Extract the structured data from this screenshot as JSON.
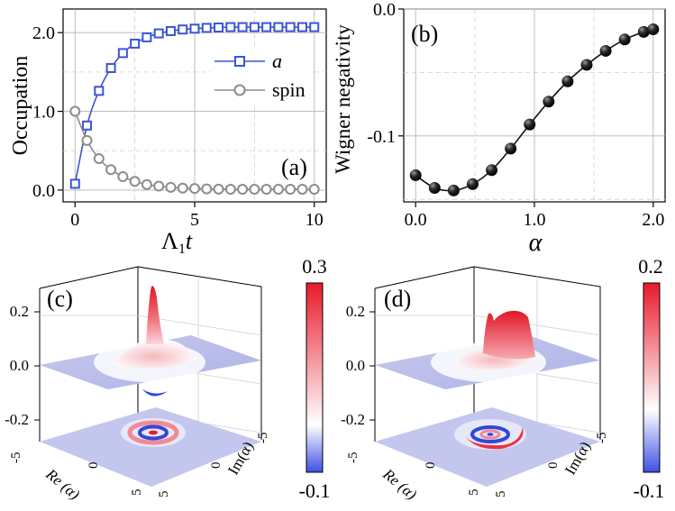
{
  "chart_data": [
    {
      "id": "a",
      "type": "line",
      "panel_label": "(a)",
      "xlabel_main": "Λ",
      "xlabel_sub": "1",
      "xlabel_tail": "t",
      "ylabel": "Occupation",
      "xlim": [
        -0.5,
        10.5
      ],
      "ylim": [
        -0.15,
        2.3
      ],
      "xticks": [
        0,
        5,
        10
      ],
      "xtick_labels": [
        "0",
        "5",
        "10"
      ],
      "yticks": [
        0.0,
        1.0,
        2.0
      ],
      "ytick_labels": [
        "0.0",
        "1.0",
        "2.0"
      ],
      "grid": true,
      "legend_position": "center-right",
      "x": [
        0,
        0.5,
        1,
        1.5,
        2,
        2.5,
        3,
        3.5,
        4,
        4.5,
        5,
        5.5,
        6,
        6.5,
        7,
        7.5,
        8,
        8.5,
        9,
        9.5,
        10
      ],
      "series": [
        {
          "name": "a",
          "color": "#3a55d6",
          "marker": "square",
          "values": [
            0.08,
            0.82,
            1.26,
            1.55,
            1.74,
            1.86,
            1.94,
            1.99,
            2.02,
            2.04,
            2.05,
            2.06,
            2.065,
            2.07,
            2.07,
            2.07,
            2.07,
            2.07,
            2.07,
            2.07,
            2.07
          ]
        },
        {
          "name": "spin",
          "color": "#8c8c8c",
          "marker": "circle",
          "values": [
            1.0,
            0.63,
            0.4,
            0.26,
            0.17,
            0.11,
            0.07,
            0.05,
            0.035,
            0.025,
            0.02,
            0.015,
            0.012,
            0.01,
            0.01,
            0.01,
            0.01,
            0.01,
            0.01,
            0.01,
            0.01
          ]
        }
      ]
    },
    {
      "id": "b",
      "type": "line",
      "panel_label": "(b)",
      "xlabel": "α",
      "ylabel": "Wigner negativity",
      "xlim": [
        -0.1,
        2.1
      ],
      "ylim": [
        -0.152,
        0.0
      ],
      "xticks": [
        0.0,
        1.0,
        2.0
      ],
      "xtick_labels": [
        "0.0",
        "1.0",
        "2.0"
      ],
      "yticks": [
        0.0,
        -0.1
      ],
      "ytick_labels": [
        "0.0",
        "-0.1"
      ],
      "grid": true,
      "series": [
        {
          "name": "negativity",
          "color": "#111111",
          "marker": "ball",
          "x": [
            0.0,
            0.16,
            0.32,
            0.48,
            0.64,
            0.8,
            0.96,
            1.12,
            1.28,
            1.44,
            1.6,
            1.76,
            1.92,
            2.0
          ],
          "values": [
            -0.131,
            -0.141,
            -0.143,
            -0.138,
            -0.127,
            -0.11,
            -0.091,
            -0.073,
            -0.057,
            -0.044,
            -0.033,
            -0.024,
            -0.018,
            -0.016
          ]
        }
      ]
    },
    {
      "id": "c",
      "type": "surface3d",
      "panel_label": "(c)",
      "zticks": [
        "0.2",
        "0.0",
        "-0.2"
      ],
      "base_x_label": "Re (α)",
      "base_y_label": "Im(α)",
      "base_x_ticks": [
        "-5",
        "0",
        "5"
      ],
      "base_y_ticks": [
        "5",
        "0",
        "-5"
      ],
      "colorbar_max": "0.3",
      "colorbar_min": "-0.1",
      "colormap": [
        "#3f4fe6",
        "#ffffff",
        "#e8192a"
      ]
    },
    {
      "id": "d",
      "type": "surface3d",
      "panel_label": "(d)",
      "zticks": [
        "0.2",
        "0.0",
        "-0.2"
      ],
      "base_x_label": "Re (α)",
      "base_y_label": "Im(α)",
      "base_x_ticks": [
        "-5",
        "0",
        "5"
      ],
      "base_y_ticks": [
        "5",
        "0",
        "-5"
      ],
      "colorbar_max": "0.2",
      "colorbar_min": "-0.1",
      "colormap": [
        "#3f4fe6",
        "#ffffff",
        "#e8192a"
      ]
    }
  ]
}
